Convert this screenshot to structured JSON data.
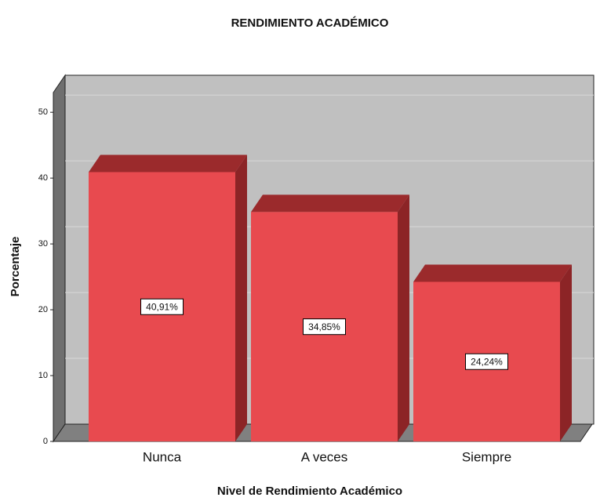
{
  "chart_data": {
    "type": "bar3d",
    "title": "RENDIMIENTO ACADÉMICO",
    "x_label": "Nivel de Rendimiento Académico",
    "y_label": "Porcentaje",
    "categories": [
      "Nunca",
      "A veces",
      "Siempre"
    ],
    "values": [
      40.91,
      34.85,
      24.24
    ],
    "value_labels": [
      "40,91%",
      "34,85%",
      "24,24%"
    ],
    "color": "#e84a4f",
    "ylim": [
      0,
      53
    ],
    "yticks": [
      0,
      10,
      20,
      30,
      40,
      50
    ],
    "grid": true
  }
}
